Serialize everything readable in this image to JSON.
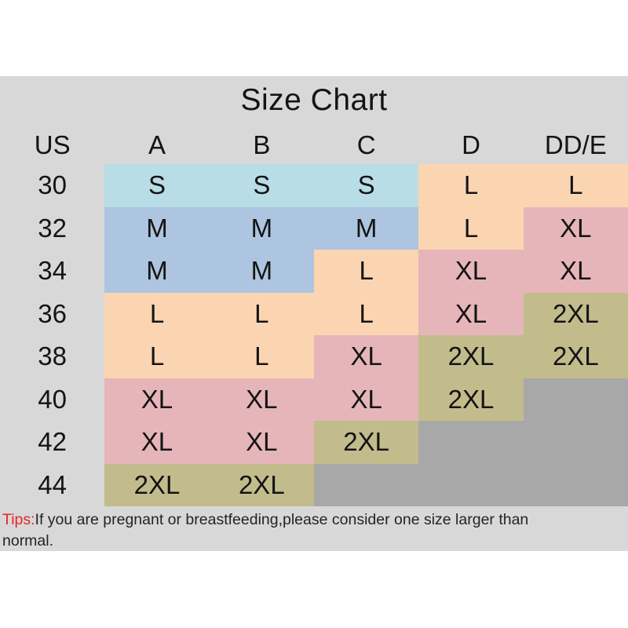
{
  "title": "Size Chart",
  "chart_data": {
    "type": "table",
    "title": "Size Chart",
    "columns": [
      "US",
      "A",
      "B",
      "C",
      "D",
      "DD/E"
    ],
    "rows": [
      {
        "label": "30",
        "cells": [
          {
            "v": "S",
            "c": "blue"
          },
          {
            "v": "S",
            "c": "blue"
          },
          {
            "v": "S",
            "c": "blue"
          },
          {
            "v": "L",
            "c": "peach"
          },
          {
            "v": "L",
            "c": "peach"
          }
        ]
      },
      {
        "label": "32",
        "cells": [
          {
            "v": "M",
            "c": "periwinkle"
          },
          {
            "v": "M",
            "c": "periwinkle"
          },
          {
            "v": "M",
            "c": "periwinkle"
          },
          {
            "v": "L",
            "c": "peach"
          },
          {
            "v": "XL",
            "c": "pink"
          }
        ]
      },
      {
        "label": "34",
        "cells": [
          {
            "v": "M",
            "c": "periwinkle"
          },
          {
            "v": "M",
            "c": "periwinkle"
          },
          {
            "v": "L",
            "c": "peach"
          },
          {
            "v": "XL",
            "c": "pink"
          },
          {
            "v": "XL",
            "c": "pink"
          }
        ]
      },
      {
        "label": "36",
        "cells": [
          {
            "v": "L",
            "c": "peach"
          },
          {
            "v": "L",
            "c": "peach"
          },
          {
            "v": "L",
            "c": "peach"
          },
          {
            "v": "XL",
            "c": "pink"
          },
          {
            "v": "2XL",
            "c": "olive"
          }
        ]
      },
      {
        "label": "38",
        "cells": [
          {
            "v": "L",
            "c": "peach"
          },
          {
            "v": "L",
            "c": "peach"
          },
          {
            "v": "XL",
            "c": "pink"
          },
          {
            "v": "2XL",
            "c": "olive"
          },
          {
            "v": "2XL",
            "c": "olive"
          }
        ]
      },
      {
        "label": "40",
        "cells": [
          {
            "v": "XL",
            "c": "pink"
          },
          {
            "v": "XL",
            "c": "pink"
          },
          {
            "v": "XL",
            "c": "pink"
          },
          {
            "v": "2XL",
            "c": "olive"
          },
          {
            "v": "",
            "c": "empty"
          }
        ]
      },
      {
        "label": "42",
        "cells": [
          {
            "v": "XL",
            "c": "pink"
          },
          {
            "v": "XL",
            "c": "pink"
          },
          {
            "v": "2XL",
            "c": "olive"
          },
          {
            "v": "",
            "c": "empty"
          },
          {
            "v": "",
            "c": "empty"
          }
        ]
      },
      {
        "label": "44",
        "cells": [
          {
            "v": "2XL",
            "c": "olive"
          },
          {
            "v": "2XL",
            "c": "olive"
          },
          {
            "v": "",
            "c": "empty"
          },
          {
            "v": "",
            "c": "empty"
          },
          {
            "v": "",
            "c": "empty"
          }
        ]
      }
    ]
  },
  "tip": {
    "label": "Tips:",
    "text1": "If you are pregnant or breastfeeding,please consider one size larger than",
    "text2": "normal."
  },
  "colors": {
    "blue": "#b9dde7",
    "periwinkle": "#adc5e0",
    "peach": "#fbd5b2",
    "pink": "#e6b5ba",
    "olive": "#c2bc8c",
    "empty": "#a8a8a8",
    "band_gray": "#d8d8d8",
    "tip_red": "#e8222b",
    "text": "#141414"
  }
}
